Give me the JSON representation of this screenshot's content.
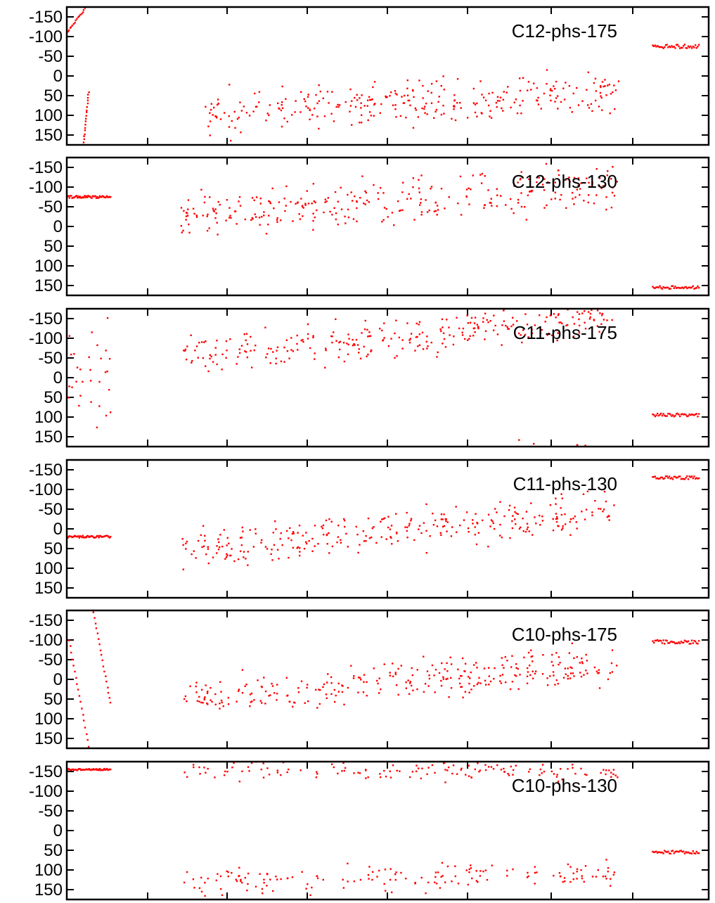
{
  "chart_data": [
    {
      "type": "scatter",
      "panel_label": "C12-phs-175",
      "y_reversed": true,
      "ylim": [
        -175,
        175
      ],
      "y_ticks": [
        -150,
        -100,
        -50,
        0,
        50,
        100,
        150
      ],
      "x_tick_labels": [],
      "color": "#ff0000",
      "segments": [
        {
          "kind": "line",
          "x": [
            0,
            8
          ],
          "y": [
            -110,
            -175
          ]
        },
        {
          "kind": "line",
          "x": [
            7,
            9
          ],
          "y": [
            170,
            40
          ]
        },
        {
          "kind": "noise",
          "x": [
            55,
            227
          ],
          "mean": [
            95,
            40
          ],
          "spread": 55,
          "n": 300,
          "seed": 11
        },
        {
          "kind": "band",
          "x": [
            241,
            260
          ],
          "y": -75,
          "jitter": 5,
          "n": 40
        }
      ]
    },
    {
      "type": "scatter",
      "panel_label": "C12-phs-130",
      "y_reversed": true,
      "ylim": [
        -175,
        175
      ],
      "y_ticks": [
        -150,
        -100,
        -50,
        0,
        50,
        100,
        150
      ],
      "x_tick_labels": [],
      "color": "#ff0000",
      "segments": [
        {
          "kind": "band",
          "x": [
            0,
            18
          ],
          "y": -75,
          "jitter": 3,
          "n": 50
        },
        {
          "kind": "noise",
          "x": [
            47,
            227
          ],
          "mean": [
            -30,
            -100
          ],
          "spread": 60,
          "n": 300,
          "seed": 12
        },
        {
          "kind": "band",
          "x": [
            241,
            260
          ],
          "y": 155,
          "jitter": 4,
          "n": 40
        }
      ]
    },
    {
      "type": "scatter",
      "panel_label": "C11-phs-175",
      "y_reversed": true,
      "ylim": [
        -175,
        175
      ],
      "y_ticks": [
        -150,
        -100,
        -50,
        0,
        50,
        100,
        150
      ],
      "x_tick_labels": [],
      "color": "#ff0000",
      "segments": [
        {
          "kind": "noise",
          "x": [
            0,
            18
          ],
          "mean": [
            0,
            0
          ],
          "spread": 160,
          "n": 30,
          "seed": 13
        },
        {
          "kind": "noise",
          "x": [
            47,
            227
          ],
          "mean": [
            -50,
            -160
          ],
          "spread": 55,
          "n": 300,
          "seed": 14
        },
        {
          "kind": "band",
          "x": [
            241,
            260
          ],
          "y": 95,
          "jitter": 4,
          "n": 40
        }
      ]
    },
    {
      "type": "scatter",
      "panel_label": "C11-phs-130",
      "y_reversed": true,
      "ylim": [
        -175,
        175
      ],
      "y_ticks": [
        -150,
        -100,
        -50,
        0,
        50,
        100,
        150
      ],
      "x_tick_labels": [],
      "color": "#ff0000",
      "segments": [
        {
          "kind": "band",
          "x": [
            0,
            18
          ],
          "y": 20,
          "jitter": 3,
          "n": 50
        },
        {
          "kind": "noise",
          "x": [
            47,
            227
          ],
          "mean": [
            60,
            -50
          ],
          "spread": 55,
          "n": 300,
          "seed": 15
        },
        {
          "kind": "band",
          "x": [
            241,
            260
          ],
          "y": -130,
          "jitter": 4,
          "n": 40
        }
      ]
    },
    {
      "type": "scatter",
      "panel_label": "C10-phs-175",
      "y_reversed": true,
      "ylim": [
        -175,
        175
      ],
      "y_ticks": [
        -150,
        -100,
        -50,
        0,
        50,
        100,
        150
      ],
      "x_tick_labels": [],
      "color": "#ff0000",
      "segments": [
        {
          "kind": "line",
          "x": [
            1,
            9
          ],
          "y": [
            -100,
            170
          ]
        },
        {
          "kind": "line",
          "x": [
            11,
            18
          ],
          "y": [
            -170,
            60
          ]
        },
        {
          "kind": "noise",
          "x": [
            47,
            227
          ],
          "mean": [
            50,
            -40
          ],
          "spread": 55,
          "n": 300,
          "seed": 16
        },
        {
          "kind": "band",
          "x": [
            241,
            260
          ],
          "y": -95,
          "jitter": 5,
          "n": 40
        }
      ]
    },
    {
      "type": "scatter",
      "panel_label": "C10-phs-130",
      "y_reversed": true,
      "ylim": [
        -175,
        175
      ],
      "y_ticks": [
        -150,
        -100,
        -50,
        0,
        50,
        100,
        150
      ],
      "x_tick_labels": [],
      "color": "#ff0000",
      "segments": [
        {
          "kind": "band",
          "x": [
            0,
            18
          ],
          "y": -155,
          "jitter": 2,
          "n": 50
        },
        {
          "kind": "noise",
          "x": [
            47,
            227
          ],
          "mean": [
            -150,
            -150
          ],
          "spread": 25,
          "n": 140,
          "seed": 17
        },
        {
          "kind": "noise",
          "x": [
            47,
            227
          ],
          "mean": [
            130,
            110
          ],
          "spread": 35,
          "n": 160,
          "seed": 18
        },
        {
          "kind": "band",
          "x": [
            241,
            260
          ],
          "y": 55,
          "jitter": 4,
          "n": 40
        }
      ]
    }
  ]
}
